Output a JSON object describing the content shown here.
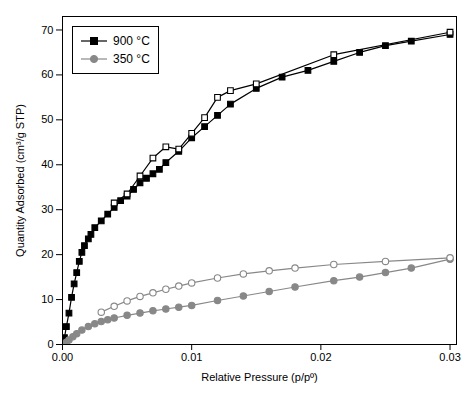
{
  "chart_data": {
    "type": "line",
    "xlabel": "Relative Pressure (p/pº)",
    "ylabel": "Quantity Adsorbed (cm³/g STP)",
    "xlim": [
      0.0,
      0.0305
    ],
    "ylim": [
      0,
      73
    ],
    "xticks": [
      {
        "value": 0,
        "label": "0.00"
      },
      0.01,
      0.02,
      0.03
    ],
    "yticks": [
      0,
      10,
      20,
      30,
      40,
      50,
      60,
      70
    ],
    "grid": false,
    "legend": "upper left",
    "series": [
      {
        "name": "900 °C",
        "color": "#000000",
        "marker": "square",
        "x": [
          0.00015,
          0.0003,
          0.0005,
          0.0007,
          0.0009,
          0.0011,
          0.0013,
          0.0015,
          0.0017,
          0.002,
          0.0022,
          0.0025,
          0.003,
          0.0035,
          0.004,
          0.0045,
          0.005,
          0.0055,
          0.006,
          0.0065,
          0.007,
          0.0075,
          0.008,
          0.009,
          0.01,
          0.011,
          0.012,
          0.013,
          0.015,
          0.017,
          0.019,
          0.021,
          0.023,
          0.025,
          0.027,
          0.03
        ],
        "values": [
          1.5,
          4.0,
          7.0,
          10.5,
          13.5,
          16.0,
          18.5,
          20.5,
          22.0,
          23.5,
          24.5,
          26.0,
          27.5,
          29.0,
          30.5,
          32.0,
          33.0,
          34.5,
          36.0,
          37.0,
          38.0,
          39.0,
          40.5,
          43.0,
          46.0,
          48.5,
          51.0,
          53.5,
          57.0,
          59.5,
          61.0,
          63.0,
          65.0,
          66.5,
          67.5,
          69.0
        ]
      },
      {
        "name": "900 °C",
        "color": "#000000",
        "marker": "square-open",
        "x": [
          0.004,
          0.005,
          0.006,
          0.007,
          0.008,
          0.009,
          0.01,
          0.011,
          0.012,
          0.013,
          0.015,
          0.021,
          0.03
        ],
        "values": [
          31.5,
          33.5,
          37.5,
          41.5,
          44.0,
          43.5,
          47.0,
          50.5,
          55.0,
          56.5,
          58.0,
          64.5,
          69.5
        ]
      },
      {
        "name": "350 °C",
        "color": "#888888",
        "marker": "circle",
        "x": [
          0.00015,
          0.0003,
          0.0005,
          0.0008,
          0.0011,
          0.0015,
          0.002,
          0.0025,
          0.003,
          0.0035,
          0.004,
          0.005,
          0.006,
          0.007,
          0.008,
          0.009,
          0.01,
          0.012,
          0.014,
          0.016,
          0.018,
          0.021,
          0.023,
          0.025,
          0.027,
          0.03
        ],
        "values": [
          0.2,
          0.5,
          1.0,
          1.7,
          2.4,
          3.2,
          4.0,
          4.6,
          5.1,
          5.5,
          5.9,
          6.5,
          7.0,
          7.5,
          7.9,
          8.3,
          8.7,
          9.8,
          10.8,
          11.8,
          12.8,
          14.2,
          15.0,
          16.0,
          17.0,
          19.0
        ]
      },
      {
        "name": "350 °C",
        "color": "#888888",
        "marker": "circle-open",
        "x": [
          0.003,
          0.004,
          0.005,
          0.006,
          0.007,
          0.008,
          0.009,
          0.01,
          0.012,
          0.014,
          0.016,
          0.018,
          0.021,
          0.025,
          0.03
        ],
        "values": [
          7.2,
          8.5,
          9.7,
          10.7,
          11.5,
          12.3,
          13.0,
          13.7,
          14.8,
          15.7,
          16.4,
          17.0,
          17.8,
          18.5,
          19.3
        ]
      }
    ]
  }
}
